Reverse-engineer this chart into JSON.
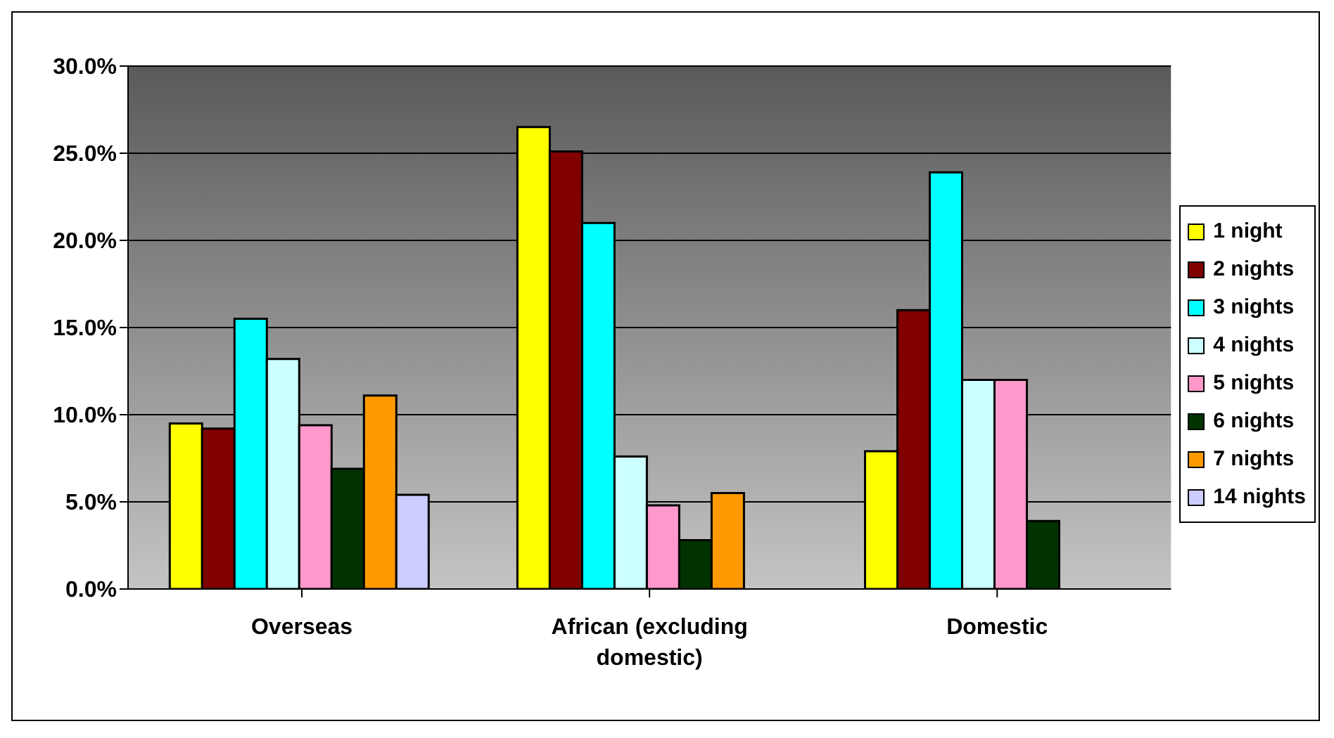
{
  "chart_data": {
    "type": "bar",
    "categories": [
      "Overseas",
      "African (excluding domestic)",
      "Domestic"
    ],
    "series": [
      {
        "name": "1 night",
        "color": "#ffff00",
        "values": [
          9.5,
          26.5,
          7.9
        ]
      },
      {
        "name": "2 nights",
        "color": "#800000",
        "values": [
          9.2,
          25.1,
          16.0
        ]
      },
      {
        "name": "3 nights",
        "color": "#00ffff",
        "values": [
          15.5,
          21.0,
          23.9
        ]
      },
      {
        "name": "4 nights",
        "color": "#ccffff",
        "values": [
          13.2,
          7.6,
          12.0
        ]
      },
      {
        "name": "5 nights",
        "color": "#ff99cc",
        "values": [
          9.4,
          4.8,
          12.0
        ]
      },
      {
        "name": "6 nights",
        "color": "#003300",
        "values": [
          6.9,
          2.8,
          3.9
        ]
      },
      {
        "name": "7 nights",
        "color": "#ff9900",
        "values": [
          11.1,
          5.5,
          null
        ]
      },
      {
        "name": "14 nights",
        "color": "#ccccff",
        "values": [
          5.4,
          null,
          null
        ]
      }
    ],
    "ylim": [
      0,
      30
    ],
    "yticks": [
      {
        "value": 0,
        "label": "0.0%"
      },
      {
        "value": 5,
        "label": "5.0%"
      },
      {
        "value": 10,
        "label": "10.0%"
      },
      {
        "value": 15,
        "label": "15.0%"
      },
      {
        "value": 20,
        "label": "20.0%"
      },
      {
        "value": 25,
        "label": "25.0%"
      },
      {
        "value": 30,
        "label": "30.0%"
      }
    ],
    "grid": "y",
    "legend": "right"
  }
}
